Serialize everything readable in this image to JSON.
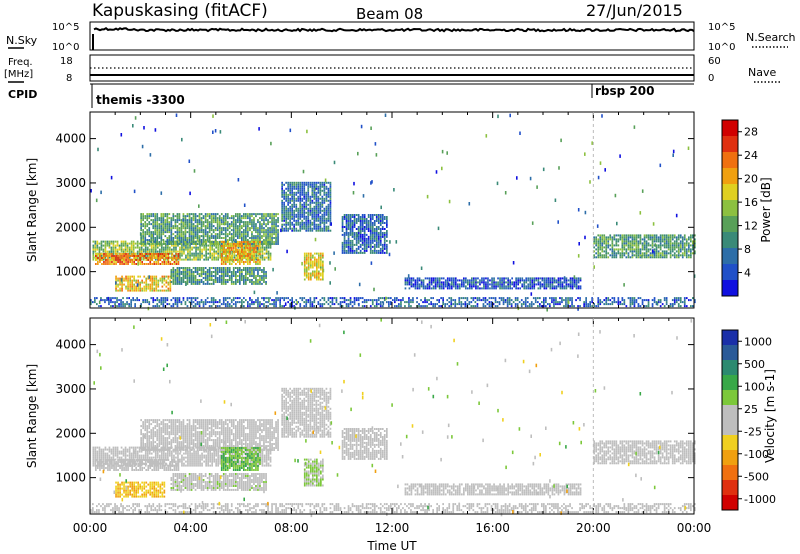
{
  "header": {
    "station": "Kapuskasing (fitACF)",
    "beam": "Beam 08",
    "date": "27/Jun/2015"
  },
  "top_panels": {
    "nsky_label": "N.Sky",
    "nsearch_label": "N.Search",
    "freq_label_line1": "Freq.",
    "freq_label_line2": "[MHz]",
    "nave_label": "Nave",
    "cpid_label": "CPID",
    "left_ticks_nsky": [
      "10^5",
      "10^0"
    ],
    "right_ticks_nsky": [
      "10^5",
      "10^0"
    ],
    "left_ticks_freq": [
      "18",
      "8"
    ],
    "right_ticks_freq": [
      "60",
      "0"
    ],
    "cpid_events": [
      {
        "label": "themis -3300",
        "hour": 0.0
      },
      {
        "label": "rbsp 200",
        "hour": 20.0
      }
    ]
  },
  "x_axis": {
    "title": "Time UT",
    "tick_labels": [
      "00:00",
      "04:00",
      "08:00",
      "12:00",
      "16:00",
      "20:00",
      "00:00"
    ],
    "range_hours": [
      0,
      24
    ]
  },
  "chart_data": [
    {
      "type": "heatmap",
      "panel": "power",
      "ylabel": "Slant Range [km]",
      "yticks": [
        "1000",
        "2000",
        "3000",
        "4000"
      ],
      "ylim": [
        180,
        4600
      ],
      "xlim_hours": [
        0,
        24
      ],
      "colorbar": {
        "label": "Power [dB]",
        "ticks": [
          "4",
          "8",
          "12",
          "16",
          "20",
          "24",
          "28"
        ],
        "range": [
          0,
          30
        ],
        "colors": [
          "#1010e0",
          "#2050c8",
          "#2d6ea8",
          "#3a8a78",
          "#58a058",
          "#8cc040",
          "#e0d020",
          "#f0a010",
          "#f07010",
          "#e03010",
          "#d00000"
        ]
      },
      "regions": [
        {
          "t0": 0.1,
          "t1": 7.2,
          "r0": 1250,
          "r1": 1700,
          "level": 14
        },
        {
          "t0": 0.2,
          "t1": 3.5,
          "r0": 1150,
          "r1": 1400,
          "level": 22
        },
        {
          "t0": 1.0,
          "t1": 3.2,
          "r0": 550,
          "r1": 900,
          "level": 18
        },
        {
          "t0": 3.2,
          "t1": 7.0,
          "r0": 700,
          "r1": 1100,
          "level": 10
        },
        {
          "t0": 2.0,
          "t1": 7.5,
          "r0": 1600,
          "r1": 2300,
          "level": 11
        },
        {
          "t0": 5.2,
          "t1": 6.8,
          "r0": 1150,
          "r1": 1650,
          "level": 20
        },
        {
          "t0": 7.6,
          "t1": 9.6,
          "r0": 1900,
          "r1": 3000,
          "level": 7
        },
        {
          "t0": 8.5,
          "t1": 9.3,
          "r0": 800,
          "r1": 1400,
          "level": 18
        },
        {
          "t0": 10.0,
          "t1": 11.8,
          "r0": 1400,
          "r1": 2300,
          "level": 6
        },
        {
          "t0": 12.5,
          "t1": 19.5,
          "r0": 600,
          "r1": 850,
          "level": 5
        },
        {
          "t0": 20.0,
          "t1": 24.0,
          "r0": 1300,
          "r1": 1800,
          "level": 11
        },
        {
          "t0": 0.0,
          "t1": 24.0,
          "r0": 200,
          "r1": 420,
          "level": 6
        }
      ]
    },
    {
      "type": "heatmap",
      "panel": "velocity",
      "ylabel": "Slant Range [km]",
      "yticks": [
        "1000",
        "2000",
        "3000",
        "4000"
      ],
      "ylim": [
        180,
        4600
      ],
      "xlim_hours": [
        0,
        24
      ],
      "colorbar": {
        "label": "Velocity [m s-1]",
        "ticks": [
          "1000",
          "500",
          "100",
          "25",
          "-25",
          "-100",
          "-500",
          "-1000"
        ],
        "range": [
          -1000,
          1000
        ],
        "colors": [
          "#1a2fa8",
          "#2a5a98",
          "#2c8a70",
          "#38a848",
          "#7cc83a",
          "#bebebe",
          "#bebebe",
          "#f0d020",
          "#f0a010",
          "#f07010",
          "#e03010",
          "#d00000"
        ]
      },
      "regions": [
        {
          "t0": 0.1,
          "t1": 7.2,
          "r0": 1250,
          "r1": 1700,
          "level": 10
        },
        {
          "t0": 0.2,
          "t1": 3.5,
          "r0": 1150,
          "r1": 1400,
          "level": 0
        },
        {
          "t0": 1.0,
          "t1": 3.0,
          "r0": 550,
          "r1": 900,
          "level": -300
        },
        {
          "t0": 3.2,
          "t1": 7.0,
          "r0": 700,
          "r1": 1100,
          "level": 60
        },
        {
          "t0": 2.0,
          "t1": 7.5,
          "r0": 1600,
          "r1": 2300,
          "level": 0
        },
        {
          "t0": 5.2,
          "t1": 6.8,
          "r0": 1150,
          "r1": 1650,
          "level": 300
        },
        {
          "t0": 7.6,
          "t1": 9.6,
          "r0": 1900,
          "r1": 3000,
          "level": 0
        },
        {
          "t0": 8.5,
          "t1": 9.3,
          "r0": 800,
          "r1": 1400,
          "level": 150
        },
        {
          "t0": 10.0,
          "t1": 11.8,
          "r0": 1400,
          "r1": 2100,
          "level": 0
        },
        {
          "t0": 12.5,
          "t1": 19.5,
          "r0": 600,
          "r1": 850,
          "level": 0
        },
        {
          "t0": 20.0,
          "t1": 24.0,
          "r0": 1300,
          "r1": 1800,
          "level": 0
        },
        {
          "t0": 0.0,
          "t1": 24.0,
          "r0": 200,
          "r1": 420,
          "level": 0
        }
      ]
    }
  ]
}
